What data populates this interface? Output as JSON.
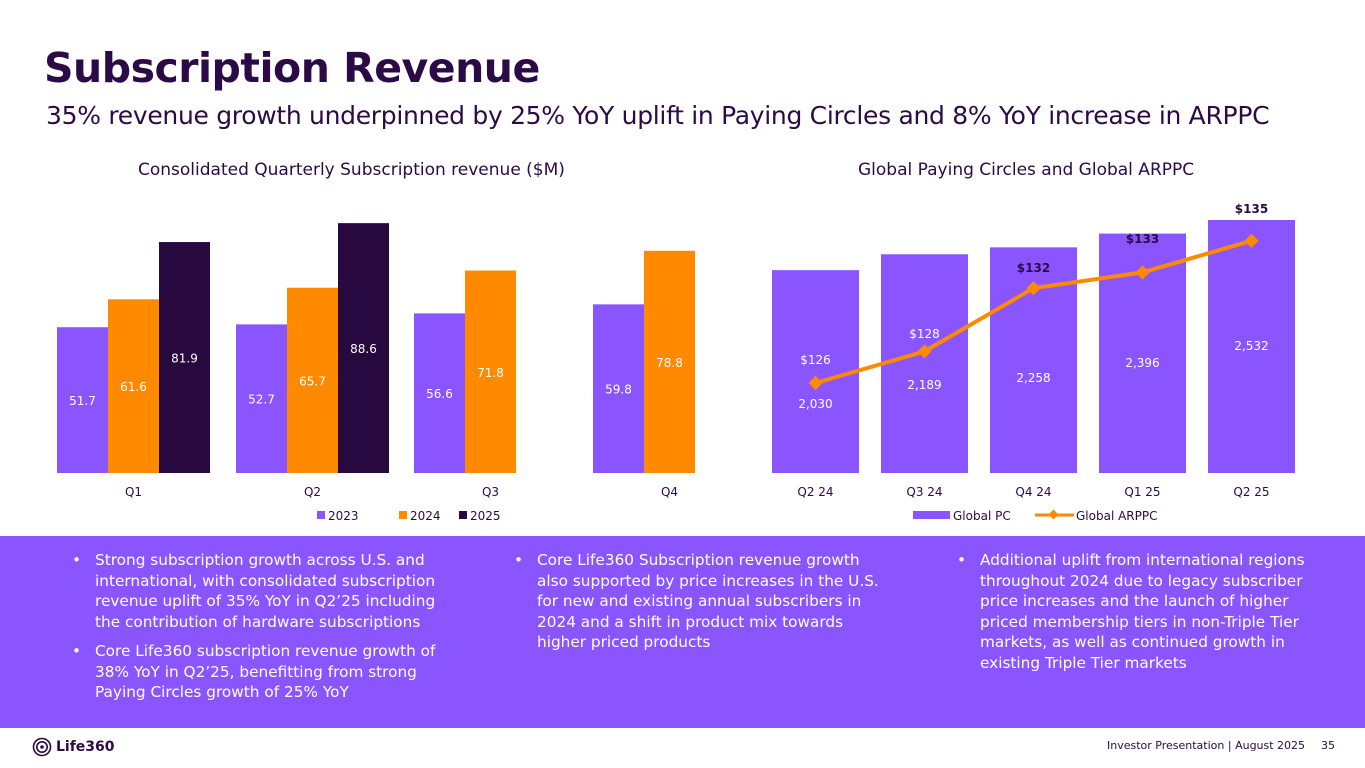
{
  "header": {
    "title": "Subscription Revenue",
    "subtitle": "35% revenue growth underpinned by 25% YoY uplift in Paying Circles and 8% YoY increase in ARPPC"
  },
  "colors": {
    "purple": "#8a55ff",
    "orange": "#ff8a00",
    "dark": "#27083f",
    "text": "#2b0a45",
    "white": "#ffffff"
  },
  "chart_data": [
    {
      "type": "bar",
      "title": "Consolidated Quarterly Subscription revenue ($M)",
      "categories": [
        "Q1",
        "Q2",
        "Q3",
        "Q4"
      ],
      "series": [
        {
          "name": "2023",
          "color": "#8a55ff",
          "values": [
            51.7,
            52.7,
            56.6,
            59.8
          ],
          "labels": [
            "51.7",
            "52.7",
            "56.6",
            "59.8"
          ]
        },
        {
          "name": "2024",
          "color": "#ff8a00",
          "values": [
            61.6,
            65.7,
            71.8,
            78.8
          ],
          "labels": [
            "61.6",
            "65.7",
            "71.8",
            "78.8"
          ]
        },
        {
          "name": "2025",
          "color": "#27083f",
          "values": [
            81.9,
            88.6,
            null,
            null
          ],
          "labels": [
            "81.9",
            "88.6",
            "",
            ""
          ]
        }
      ],
      "ylim": [
        0,
        90
      ],
      "legend": "bottom",
      "grid": false
    },
    {
      "type": "bar+line",
      "title": "Global Paying Circles and Global ARPPC",
      "categories": [
        "Q2 24",
        "Q3 24",
        "Q4 24",
        "Q1 25",
        "Q2 25"
      ],
      "bars": {
        "name": "Global PC",
        "color": "#8a55ff",
        "values": [
          2030,
          2189,
          2258,
          2396,
          2532
        ],
        "labels": [
          "2,030",
          "2,189",
          "2,258",
          "2,396",
          "2,532"
        ]
      },
      "line": {
        "name": "Global ARPPC",
        "color": "#ff8a00",
        "values": [
          126,
          128,
          132,
          133,
          135
        ],
        "labels": [
          "$126",
          "$128",
          "$132",
          "$133",
          "$135"
        ]
      },
      "legend": "bottom",
      "grid": false
    }
  ],
  "bullets": {
    "col1": [
      "Strong subscription growth across U.S. and international, with consolidated subscription revenue uplift of 35% YoY in Q2’25 including the contribution of hardware subscriptions",
      "Core Life360 subscription revenue growth of 38% YoY in Q2’25, benefitting from strong Paying Circles growth of 25% YoY"
    ],
    "col2": [
      "Core Life360 Subscription revenue growth also supported by price increases in the U.S. for new and existing annual subscribers in 2024 and a shift in product mix towards higher priced products"
    ],
    "col3": [
      "Additional uplift from international regions throughout 2024 due to legacy subscriber price increases and the launch of higher priced membership tiers in non-Triple Tier markets, as well as continued growth in existing Triple Tier markets"
    ]
  },
  "footer": {
    "logo_text": "Life360",
    "text": "Investor Presentation  | August 2025",
    "page": "35"
  }
}
